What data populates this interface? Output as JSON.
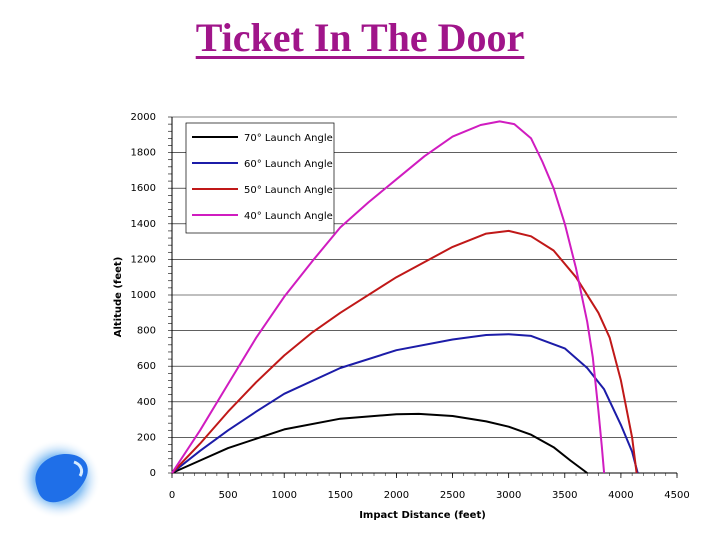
{
  "page": {
    "title": "Ticket In The Door"
  },
  "chart_data": {
    "type": "line",
    "xlabel": "Impact Distance (feet)",
    "ylabel": "Altitude (feet)",
    "xlim": [
      0,
      4500
    ],
    "ylim": [
      0,
      2000
    ],
    "x_ticks": [
      "0",
      "500",
      "1000",
      "1500",
      "2000",
      "2500",
      "3000",
      "3500",
      "4000",
      "4500"
    ],
    "y_ticks": [
      "0",
      "200",
      "400",
      "600",
      "800",
      "1000",
      "1200",
      "1400",
      "1600",
      "1800",
      "2000"
    ],
    "grid": "horizontal",
    "legend_position": "top-left",
    "series": [
      {
        "name": "70° Launch Angle",
        "color": "#000000",
        "points": [
          [
            0,
            0
          ],
          [
            250,
            70
          ],
          [
            500,
            140
          ],
          [
            1000,
            245
          ],
          [
            1500,
            305
          ],
          [
            2000,
            330
          ],
          [
            2200,
            332
          ],
          [
            2500,
            320
          ],
          [
            2800,
            290
          ],
          [
            3000,
            260
          ],
          [
            3200,
            215
          ],
          [
            3400,
            145
          ],
          [
            3550,
            70
          ],
          [
            3700,
            0
          ]
        ]
      },
      {
        "name": "60° Launch Angle",
        "color": "#1c1ca8",
        "points": [
          [
            0,
            0
          ],
          [
            250,
            125
          ],
          [
            500,
            240
          ],
          [
            750,
            345
          ],
          [
            1000,
            445
          ],
          [
            1500,
            590
          ],
          [
            2000,
            690
          ],
          [
            2500,
            750
          ],
          [
            2800,
            775
          ],
          [
            3000,
            780
          ],
          [
            3200,
            770
          ],
          [
            3500,
            700
          ],
          [
            3700,
            590
          ],
          [
            3850,
            470
          ],
          [
            4000,
            270
          ],
          [
            4100,
            120
          ],
          [
            4150,
            0
          ]
        ]
      },
      {
        "name": "50° Launch Angle",
        "color": "#c01818",
        "points": [
          [
            0,
            0
          ],
          [
            250,
            165
          ],
          [
            500,
            345
          ],
          [
            750,
            510
          ],
          [
            1000,
            660
          ],
          [
            1250,
            790
          ],
          [
            1500,
            900
          ],
          [
            2000,
            1100
          ],
          [
            2500,
            1270
          ],
          [
            2800,
            1345
          ],
          [
            3000,
            1360
          ],
          [
            3200,
            1330
          ],
          [
            3400,
            1250
          ],
          [
            3600,
            1100
          ],
          [
            3800,
            900
          ],
          [
            3900,
            760
          ],
          [
            4000,
            520
          ],
          [
            4100,
            200
          ],
          [
            4140,
            0
          ]
        ]
      },
      {
        "name": "40° Launch Angle",
        "color": "#d01cc0",
        "points": [
          [
            0,
            0
          ],
          [
            250,
            240
          ],
          [
            500,
            500
          ],
          [
            750,
            760
          ],
          [
            1000,
            990
          ],
          [
            1250,
            1190
          ],
          [
            1500,
            1380
          ],
          [
            1750,
            1520
          ],
          [
            2000,
            1650
          ],
          [
            2250,
            1780
          ],
          [
            2500,
            1890
          ],
          [
            2750,
            1955
          ],
          [
            2920,
            1975
          ],
          [
            3050,
            1960
          ],
          [
            3200,
            1880
          ],
          [
            3300,
            1750
          ],
          [
            3400,
            1600
          ],
          [
            3500,
            1400
          ],
          [
            3600,
            1150
          ],
          [
            3700,
            850
          ],
          [
            3750,
            650
          ],
          [
            3800,
            350
          ],
          [
            3830,
            150
          ],
          [
            3850,
            0
          ]
        ]
      }
    ]
  }
}
